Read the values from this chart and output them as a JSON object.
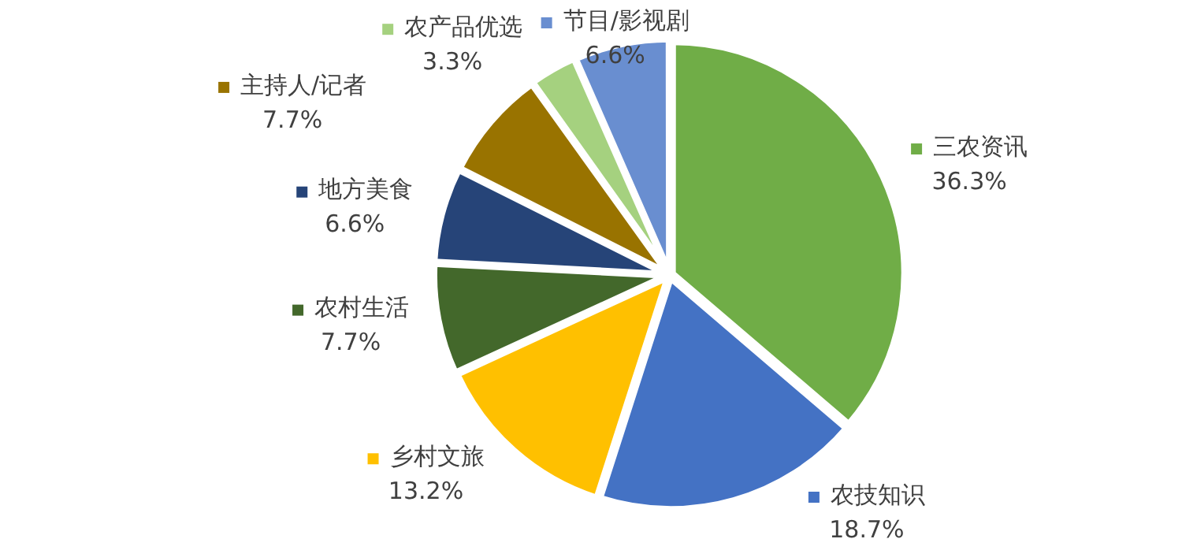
{
  "chart_data": {
    "type": "pie",
    "categories": [
      "三农资讯",
      "农技知识",
      "乡村文旅",
      "农村生活",
      "地方美食",
      "主持人/记者",
      "农产品优选",
      "节目/影视剧"
    ],
    "values": [
      36.3,
      18.7,
      13.2,
      7.7,
      6.6,
      7.7,
      3.3,
      6.6
    ],
    "value_labels": [
      "36.3%",
      "18.7%",
      "13.2%",
      "7.7%",
      "6.6%",
      "7.7%",
      "3.3%",
      "6.6%"
    ],
    "colors": [
      "#70ad47",
      "#4472c4",
      "#ffc000",
      "#43682b",
      "#264478",
      "#997300",
      "#a5d17f",
      "#698ed0"
    ],
    "legend": "top left"
  }
}
